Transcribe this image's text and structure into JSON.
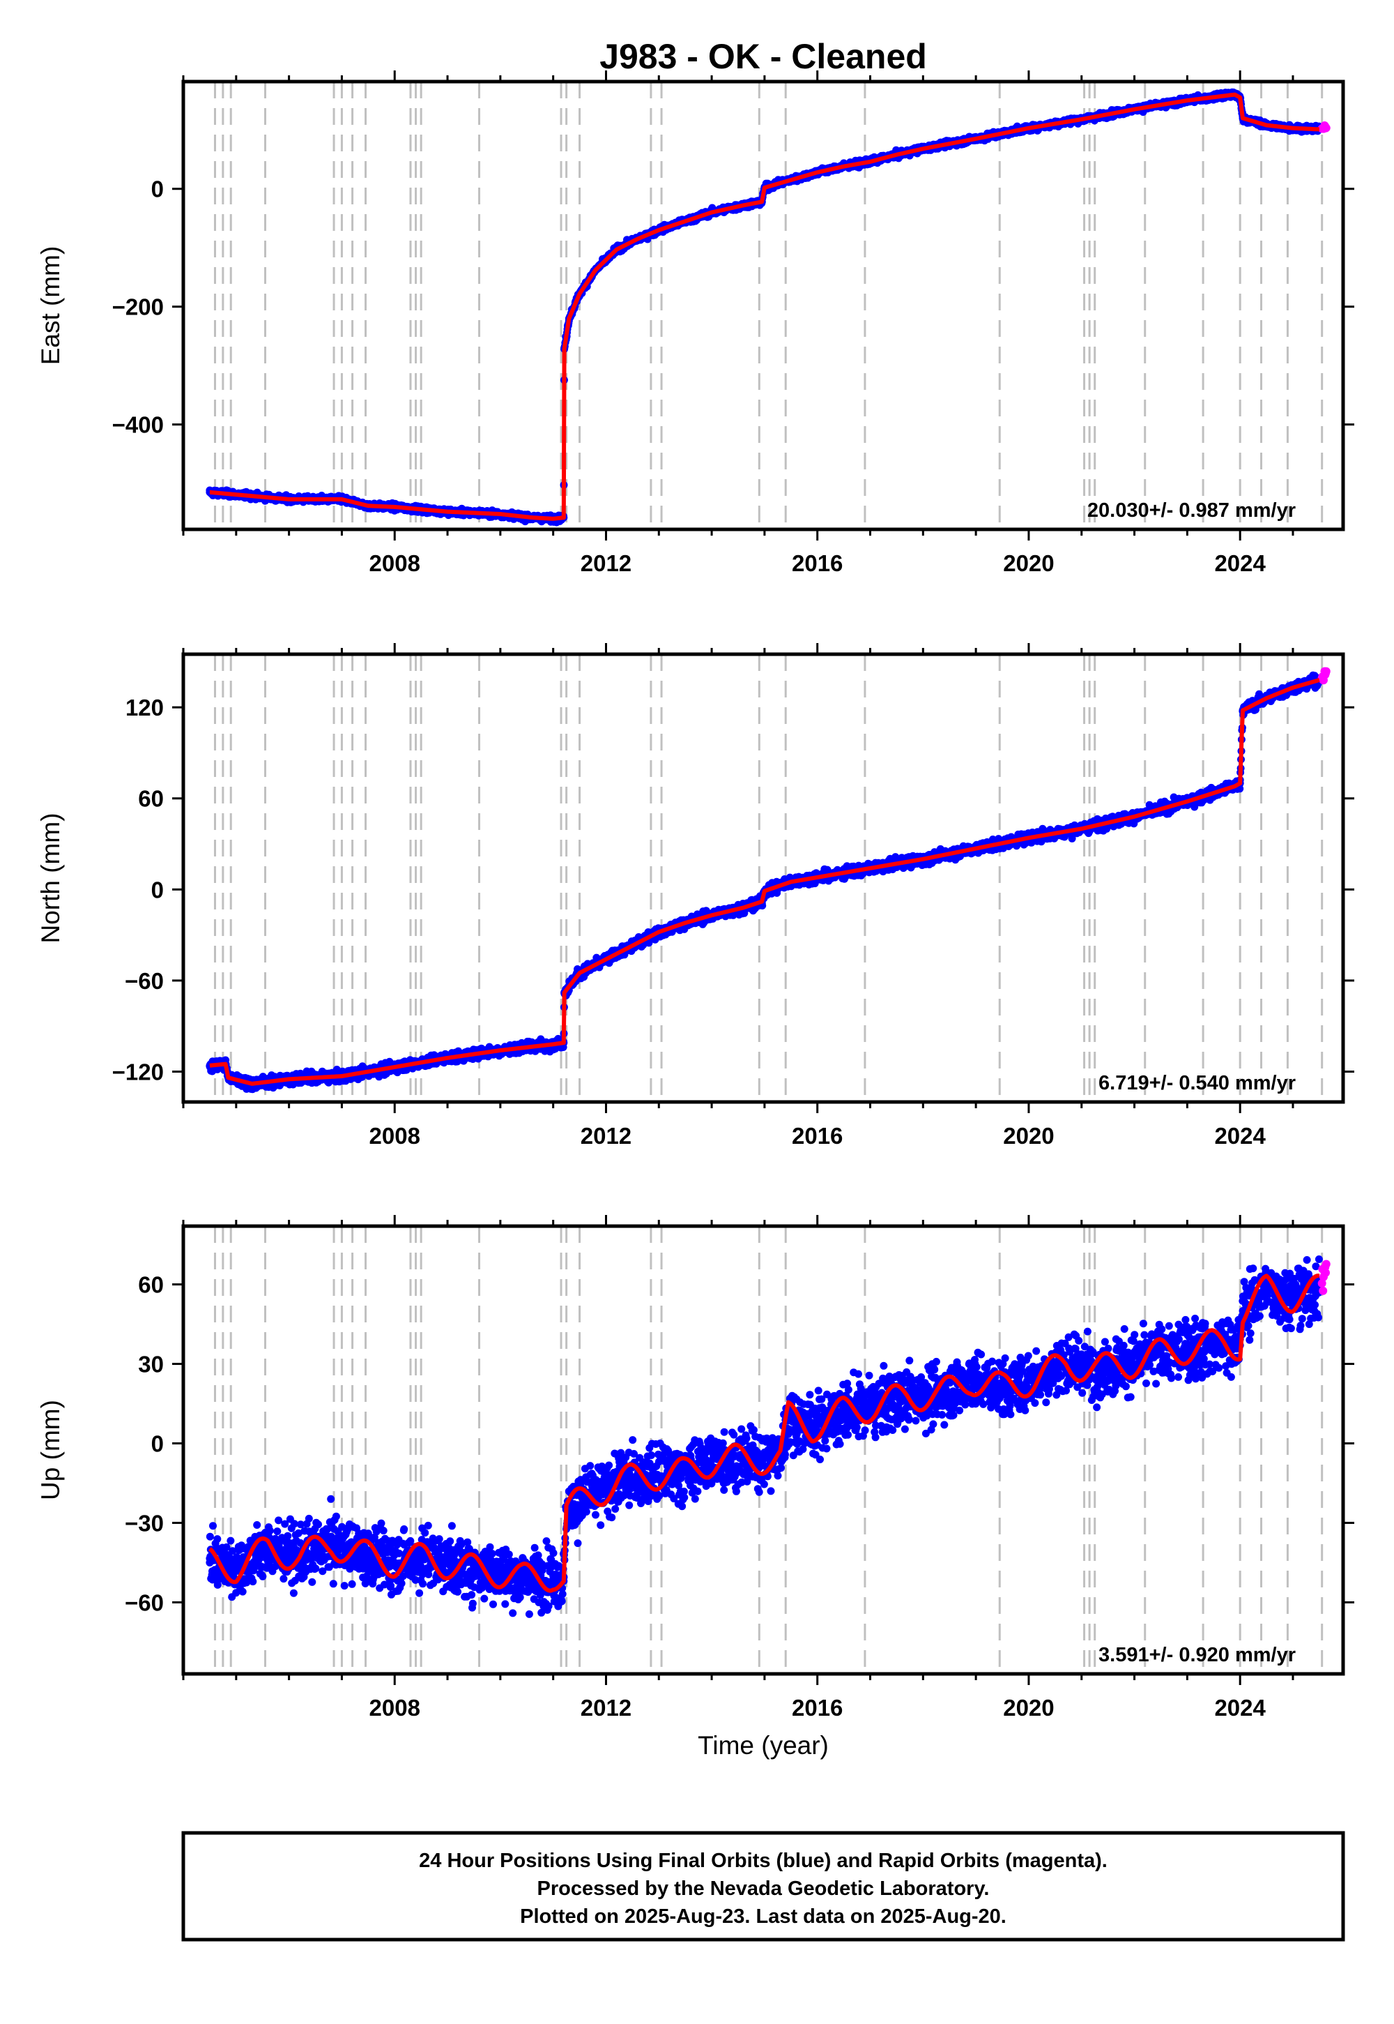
{
  "title": "J983  - OK - Cleaned",
  "x_axis": {
    "label": "Time (year)",
    "ticks": [
      2008,
      2012,
      2016,
      2020,
      2024
    ],
    "tick_labels": [
      "2008",
      "2012",
      "2016",
      "2020",
      "2024"
    ],
    "range": [
      2004.0,
      2025.95
    ]
  },
  "colors": {
    "final_orbits": "#0000ff",
    "rapid_orbits": "#ff00ff",
    "model": "#ff0000",
    "event_lines": "#c0c0c0",
    "frame": "#000000"
  },
  "chart_data": [
    {
      "type": "scatter",
      "component": "east",
      "ylabel": "East (mm)",
      "ylim": [
        -578,
        182
      ],
      "yticks": [
        0,
        -200,
        -400
      ],
      "ytick_labels": [
        "0",
        "−200",
        "−400"
      ],
      "rate_text": "20.030+/- 0.987 mm/yr",
      "series": [
        {
          "name": "Final Orbits (blue)",
          "x": [
            2004.5,
            2005.0,
            2006.0,
            2007.0,
            2007.5,
            2008.0,
            2009.0,
            2010.0,
            2010.6,
            2011.0,
            2011.2,
            2011.21,
            2011.3,
            2011.5,
            2011.8,
            2012.2,
            2012.6,
            2013.0,
            2013.5,
            2014.0,
            2014.6,
            2014.95,
            2015.0,
            2015.5,
            2016.0,
            2016.5,
            2017.0,
            2017.5,
            2018.0,
            2019.0,
            2020.0,
            2021.0,
            2022.0,
            2023.0,
            2023.9,
            2024.0,
            2024.05,
            2024.5,
            2025.0,
            2025.5
          ],
          "y": [
            -515,
            -519,
            -527,
            -527,
            -538,
            -540,
            -548,
            -552,
            -558,
            -560,
            -558,
            -272,
            -220,
            -178,
            -138,
            -103,
            -85,
            -70,
            -55,
            -40,
            -28,
            -22,
            2,
            15,
            28,
            38,
            46,
            58,
            68,
            85,
            103,
            118,
            135,
            150,
            160,
            155,
            120,
            108,
            103,
            101
          ]
        },
        {
          "name": "Rapid Orbits (magenta)",
          "x": [
            2025.55,
            2025.6
          ],
          "y": [
            102,
            105
          ]
        }
      ]
    },
    {
      "type": "scatter",
      "component": "north",
      "ylabel": "North (mm)",
      "ylim": [
        -140,
        155
      ],
      "yticks": [
        120,
        60,
        0,
        -60,
        -120
      ],
      "ytick_labels": [
        "120",
        "60",
        "0",
        "−60",
        "−120"
      ],
      "rate_text": "6.719+/- 0.540 mm/yr",
      "series": [
        {
          "name": "Final Orbits (blue)",
          "x": [
            2004.5,
            2004.8,
            2004.85,
            2005.3,
            2006.0,
            2007.0,
            2008.0,
            2009.0,
            2010.0,
            2011.0,
            2011.2,
            2011.21,
            2011.5,
            2012.0,
            2012.5,
            2013.0,
            2013.5,
            2014.0,
            2014.6,
            2014.95,
            2015.0,
            2015.5,
            2016.0,
            2017.0,
            2018.0,
            2019.0,
            2020.0,
            2021.0,
            2022.0,
            2023.0,
            2023.9,
            2024.0,
            2024.05,
            2024.5,
            2025.0,
            2025.5
          ],
          "y": [
            -116,
            -115,
            -124,
            -128,
            -125,
            -123,
            -117,
            -111,
            -106,
            -102,
            -101,
            -68,
            -55,
            -46,
            -37,
            -28,
            -22,
            -17,
            -12,
            -8,
            -1,
            5,
            8,
            14,
            20,
            27,
            34,
            40,
            48,
            58,
            68,
            70,
            118,
            126,
            133,
            138
          ]
        },
        {
          "name": "Rapid Orbits (magenta)",
          "x": [
            2025.55,
            2025.6
          ],
          "y": [
            140,
            143
          ]
        }
      ]
    },
    {
      "type": "scatter",
      "component": "up",
      "ylabel": "Up (mm)",
      "ylim": [
        -87,
        82
      ],
      "yticks": [
        60,
        30,
        0,
        -30,
        -60
      ],
      "ytick_labels": [
        "60",
        "30",
        "0",
        "−30",
        "−60"
      ],
      "rate_text": "3.591+/- 0.920 mm/yr",
      "series": [
        {
          "name": "Final Orbits (blue)",
          "x": [
            2004.5,
            2005.0,
            2005.6,
            2006.2,
            2006.8,
            2007.4,
            2008.0,
            2008.6,
            2009.2,
            2009.8,
            2010.4,
            2011.0,
            2011.2,
            2011.25,
            2011.7,
            2012.3,
            2012.9,
            2013.5,
            2014.1,
            2014.7,
            2015.3,
            2015.45,
            2015.9,
            2016.5,
            2017.1,
            2017.7,
            2018.3,
            2018.9,
            2019.5,
            2020.1,
            2020.7,
            2021.3,
            2021.9,
            2022.5,
            2023.1,
            2023.7,
            2024.0,
            2024.05,
            2024.5,
            2025.0,
            2025.5
          ],
          "y": [
            -45,
            -47,
            -40,
            -43,
            -38,
            -42,
            -45,
            -43,
            -47,
            -48,
            -51,
            -50,
            -52,
            -25,
            -20,
            -14,
            -12,
            -11,
            -6,
            -6,
            -6,
            10,
            6,
            12,
            14,
            18,
            18,
            24,
            21,
            24,
            30,
            28,
            30,
            34,
            36,
            38,
            37,
            50,
            58,
            55,
            58
          ]
        },
        {
          "name": "Rapid Orbits (magenta)",
          "x": [
            2025.55,
            2025.6
          ],
          "y": [
            62,
            66
          ]
        }
      ]
    }
  ],
  "event_lines": [
    2004.6,
    2004.75,
    2004.9,
    2005.55,
    2006.85,
    2007.0,
    2007.2,
    2007.45,
    2008.3,
    2008.4,
    2008.5,
    2009.6,
    2011.15,
    2011.25,
    2011.5,
    2012.85,
    2013.05,
    2014.9,
    2015.4,
    2016.9,
    2019.45,
    2021.05,
    2021.15,
    2021.25,
    2022.2,
    2023.3,
    2024.0,
    2024.4,
    2024.9,
    2025.55
  ],
  "footer": {
    "line1": "24 Hour Positions Using Final Orbits (blue) and Rapid Orbits (magenta).",
    "line2": "Processed by the Nevada Geodetic Laboratory.",
    "line3": "Plotted on 2025-Aug-23. Last data on 2025-Aug-20."
  }
}
